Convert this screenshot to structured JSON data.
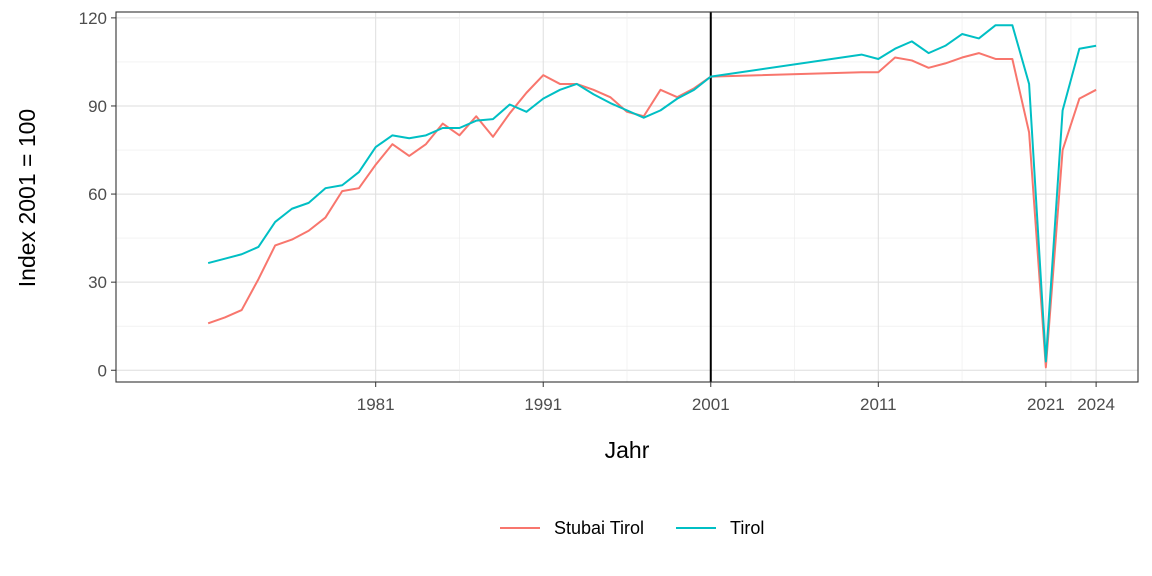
{
  "chart_data": {
    "type": "line",
    "title": "",
    "xlabel": "Jahr",
    "ylabel": "Index 2001 = 100",
    "xlim": [
      1965.5,
      2026.5
    ],
    "ylim": [
      -4,
      122
    ],
    "x_ticks": [
      1981,
      1991,
      2001,
      2011,
      2021,
      2024
    ],
    "y_ticks": [
      0,
      30,
      60,
      90,
      120
    ],
    "reference_line_x": 2001,
    "grid": true,
    "legend_position": "bottom",
    "series": [
      {
        "name": "Stubai Tirol",
        "color": "#F8766D",
        "points": [
          [
            1971,
            16
          ],
          [
            1972,
            18
          ],
          [
            1973,
            20.5
          ],
          [
            1974,
            31
          ],
          [
            1975,
            42.5
          ],
          [
            1976,
            44.5
          ],
          [
            1977,
            47.5
          ],
          [
            1978,
            52
          ],
          [
            1979,
            61
          ],
          [
            1980,
            62
          ],
          [
            1981,
            70
          ],
          [
            1982,
            77
          ],
          [
            1983,
            73
          ],
          [
            1984,
            77
          ],
          [
            1985,
            84
          ],
          [
            1986,
            80
          ],
          [
            1987,
            86.5
          ],
          [
            1988,
            79.5
          ],
          [
            1989,
            87.5
          ],
          [
            1990,
            94.5
          ],
          [
            1991,
            100.5
          ],
          [
            1992,
            97.5
          ],
          [
            1993,
            97.5
          ],
          [
            1994,
            95.5
          ],
          [
            1995,
            93
          ],
          [
            1996,
            88
          ],
          [
            1997,
            86.5
          ],
          [
            1998,
            95.5
          ],
          [
            1999,
            93
          ],
          [
            2000,
            96
          ],
          [
            2001,
            100
          ],
          [
            2010,
            101.5
          ],
          [
            2011,
            101.5
          ],
          [
            2012,
            106.5
          ],
          [
            2013,
            105.5
          ],
          [
            2014,
            103
          ],
          [
            2015,
            104.5
          ],
          [
            2016,
            106.5
          ],
          [
            2017,
            108
          ],
          [
            2018,
            106
          ],
          [
            2019,
            106
          ],
          [
            2020,
            81
          ],
          [
            2021,
            1
          ],
          [
            2022,
            75
          ],
          [
            2023,
            92.5
          ],
          [
            2024,
            95.5
          ]
        ]
      },
      {
        "name": "Tirol",
        "color": "#00BFC4",
        "points": [
          [
            1971,
            36.5
          ],
          [
            1972,
            38
          ],
          [
            1973,
            39.5
          ],
          [
            1974,
            42
          ],
          [
            1975,
            50.5
          ],
          [
            1976,
            55
          ],
          [
            1977,
            57
          ],
          [
            1978,
            62
          ],
          [
            1979,
            63
          ],
          [
            1980,
            67.5
          ],
          [
            1981,
            76
          ],
          [
            1982,
            80
          ],
          [
            1983,
            79
          ],
          [
            1984,
            80
          ],
          [
            1985,
            82.5
          ],
          [
            1986,
            82.5
          ],
          [
            1987,
            85
          ],
          [
            1988,
            85.5
          ],
          [
            1989,
            90.5
          ],
          [
            1990,
            88
          ],
          [
            1991,
            92.5
          ],
          [
            1992,
            95.5
          ],
          [
            1993,
            97.5
          ],
          [
            1994,
            94
          ],
          [
            1995,
            91
          ],
          [
            1996,
            88.5
          ],
          [
            1997,
            86
          ],
          [
            1998,
            88.5
          ],
          [
            1999,
            92.5
          ],
          [
            2000,
            95.5
          ],
          [
            2001,
            100
          ],
          [
            2010,
            107.5
          ],
          [
            2011,
            106
          ],
          [
            2012,
            109.5
          ],
          [
            2013,
            112
          ],
          [
            2014,
            108
          ],
          [
            2015,
            110.5
          ],
          [
            2016,
            114.5
          ],
          [
            2017,
            113
          ],
          [
            2018,
            117.5
          ],
          [
            2019,
            117.5
          ],
          [
            2020,
            97.5
          ],
          [
            2021,
            3
          ],
          [
            2022,
            88.5
          ],
          [
            2023,
            109.5
          ],
          [
            2024,
            110.5
          ]
        ]
      }
    ]
  }
}
